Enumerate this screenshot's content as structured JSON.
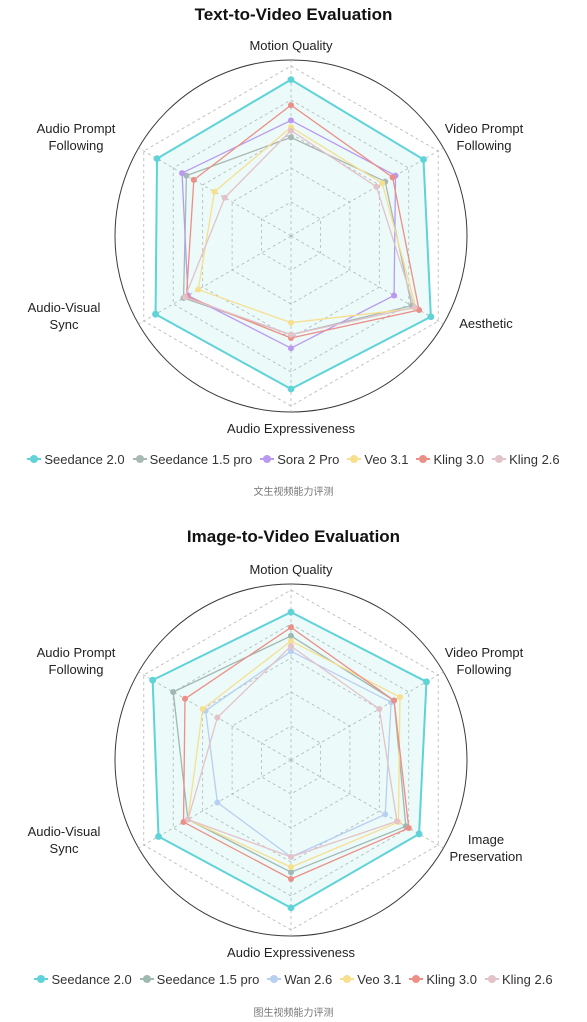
{
  "chart_data": [
    {
      "type": "radar",
      "title": "Text-to-Video Evaluation",
      "caption": "文生视频能力评测",
      "axes": [
        "Motion Quality",
        "Video Prompt Following",
        "Aesthetic",
        "Audio Expressiveness",
        "Audio-Visual Sync",
        "Audio Prompt Following"
      ],
      "axis_label_lines": [
        [
          "Motion Quality"
        ],
        [
          "Video Prompt",
          "Following"
        ],
        [
          "Aesthetic"
        ],
        [
          "Audio Expressiveness"
        ],
        [
          "Audio-Visual",
          "Sync"
        ],
        [
          "Audio Prompt",
          "Following"
        ]
      ],
      "range": [
        0,
        1
      ],
      "gridlines": true,
      "legend_position": "bottom",
      "series": [
        {
          "name": "Seedance 2.0",
          "color": "#5fd3d8",
          "fill": true,
          "values": [
            0.92,
            0.9,
            0.95,
            0.9,
            0.92,
            0.91
          ]
        },
        {
          "name": "Seedance 1.5 pro",
          "color": "#a8b8b2",
          "values": [
            0.58,
            0.64,
            0.82,
            0.58,
            0.73,
            0.71
          ]
        },
        {
          "name": "Sora 2 Pro",
          "color": "#b99af0",
          "values": [
            0.68,
            0.71,
            0.7,
            0.66,
            0.7,
            0.74
          ]
        },
        {
          "name": "Veo 3.1",
          "color": "#f7df8e",
          "values": [
            0.64,
            0.62,
            0.85,
            0.51,
            0.63,
            0.52
          ]
        },
        {
          "name": "Kling 3.0",
          "color": "#ec8f86",
          "values": [
            0.77,
            0.69,
            0.87,
            0.6,
            0.71,
            0.66
          ]
        },
        {
          "name": "Kling 2.6",
          "color": "#e3c2c8",
          "values": [
            0.62,
            0.58,
            0.84,
            0.58,
            0.72,
            0.45
          ]
        }
      ]
    },
    {
      "type": "radar",
      "title": "Image-to-Video Evaluation",
      "caption": "图生视频能力评测",
      "axes": [
        "Motion Quality",
        "Video Prompt Following",
        "Image Preservation",
        "Audio Expressiveness",
        "Audio-Visual Sync",
        "Audio Prompt Following"
      ],
      "axis_label_lines": [
        [
          "Motion Quality"
        ],
        [
          "Video Prompt",
          "Following"
        ],
        [
          "Image",
          "Preservation"
        ],
        [
          "Audio Expressiveness"
        ],
        [
          "Audio-Visual",
          "Sync"
        ],
        [
          "Audio Prompt",
          "Following"
        ]
      ],
      "range": [
        0,
        1
      ],
      "gridlines": true,
      "legend_position": "bottom",
      "series": [
        {
          "name": "Seedance 2.0",
          "color": "#5fd3d8",
          "fill": true,
          "values": [
            0.87,
            0.92,
            0.87,
            0.87,
            0.9,
            0.94
          ]
        },
        {
          "name": "Seedance 1.5 pro",
          "color": "#9fb8b2",
          "values": [
            0.73,
            0.7,
            0.78,
            0.66,
            0.7,
            0.8
          ]
        },
        {
          "name": "Wan 2.6",
          "color": "#b9cff0",
          "values": [
            0.64,
            0.68,
            0.64,
            0.57,
            0.5,
            0.58
          ]
        },
        {
          "name": "Veo 3.1",
          "color": "#f7df8e",
          "values": [
            0.7,
            0.74,
            0.73,
            0.63,
            0.7,
            0.6
          ]
        },
        {
          "name": "Kling 3.0",
          "color": "#ec8f86",
          "values": [
            0.78,
            0.7,
            0.8,
            0.7,
            0.73,
            0.72
          ]
        },
        {
          "name": "Kling 2.6",
          "color": "#e3c2c8",
          "values": [
            0.67,
            0.6,
            0.72,
            0.57,
            0.7,
            0.5
          ]
        }
      ]
    }
  ]
}
